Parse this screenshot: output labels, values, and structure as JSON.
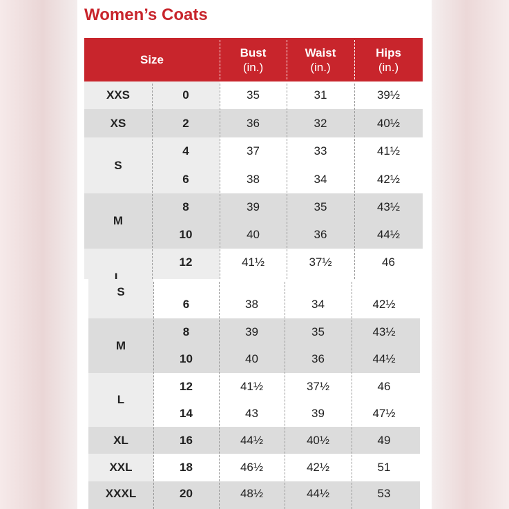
{
  "title": "Women’s Coats",
  "header": {
    "size": "Size",
    "bust": "Bust",
    "waist": "Waist",
    "hips": "Hips",
    "unit": "(in.)"
  },
  "colors": {
    "header_red": "#c8252c",
    "band_gray": "#dcdcdc",
    "band_light": "#ededed",
    "title_red": "#c8252c"
  },
  "top_table": {
    "rows": [
      {
        "size": "XXS",
        "num": "0",
        "bust": "35",
        "waist": "31",
        "hips": "39½"
      },
      {
        "size": "XS",
        "num": "2",
        "bust": "36",
        "waist": "32",
        "hips": "40½"
      },
      {
        "size": "S",
        "num": "4",
        "bust": "37",
        "waist": "33",
        "hips": "41½"
      },
      {
        "size": "",
        "num": "6",
        "bust": "38",
        "waist": "34",
        "hips": "42½"
      },
      {
        "size": "M",
        "num": "8",
        "bust": "39",
        "waist": "35",
        "hips": "43½"
      },
      {
        "size": "",
        "num": "10",
        "bust": "40",
        "waist": "36",
        "hips": "44½"
      },
      {
        "size": "L",
        "num": "12",
        "bust": "41½",
        "waist": "37½",
        "hips": "46"
      }
    ]
  },
  "bottom_table": {
    "rows": [
      {
        "size": "S",
        "num": "6",
        "bust": "38",
        "waist": "34",
        "hips": "42½"
      },
      {
        "size": "M",
        "num": "8",
        "bust": "39",
        "waist": "35",
        "hips": "43½"
      },
      {
        "size": "",
        "num": "10",
        "bust": "40",
        "waist": "36",
        "hips": "44½"
      },
      {
        "size": "L",
        "num": "12",
        "bust": "41½",
        "waist": "37½",
        "hips": "46"
      },
      {
        "size": "",
        "num": "14",
        "bust": "43",
        "waist": "39",
        "hips": "47½"
      },
      {
        "size": "XL",
        "num": "16",
        "bust": "44½",
        "waist": "40½",
        "hips": "49"
      },
      {
        "size": "XXL",
        "num": "18",
        "bust": "46½",
        "waist": "42½",
        "hips": "51"
      },
      {
        "size": "XXXL",
        "num": "20",
        "bust": "48½",
        "waist": "44½",
        "hips": "53"
      }
    ]
  }
}
